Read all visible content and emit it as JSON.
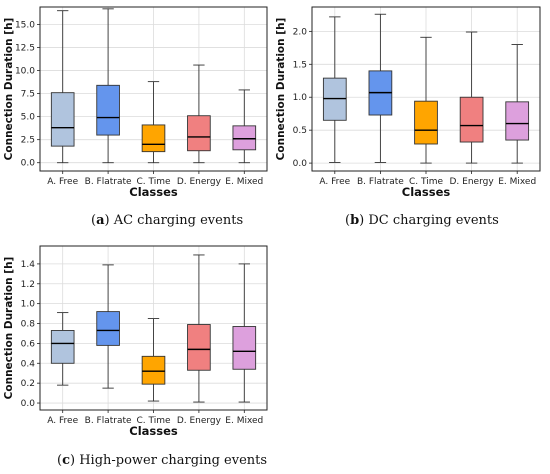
{
  "chart_data": [
    {
      "type": "box",
      "caption_letter": "a",
      "caption_text": "AC charging events",
      "xlabel": "Classes",
      "ylabel": "Connection Duration [h]",
      "ylim": [
        -0.9,
        16.9
      ],
      "yticks": [
        "0.0",
        "2.5",
        "5.0",
        "7.5",
        "10.0",
        "12.5",
        "15.0"
      ],
      "ytick_values": [
        0,
        2.5,
        5,
        7.5,
        10,
        12.5,
        15
      ],
      "grid": true,
      "categories": [
        "A. Free",
        "B. Flatrate",
        "C. Time",
        "D. Energy",
        "E. Mixed"
      ],
      "colors": [
        "#b0c4de",
        "#6495ed",
        "#ffa500",
        "#f08080",
        "#dda0dd"
      ],
      "boxes": [
        {
          "whisker_low": 0.0,
          "q1": 1.8,
          "median": 3.8,
          "q3": 7.6,
          "whisker_high": 16.5
        },
        {
          "whisker_low": 0.0,
          "q1": 3.0,
          "median": 4.9,
          "q3": 8.4,
          "whisker_high": 16.7
        },
        {
          "whisker_low": 0.0,
          "q1": 1.2,
          "median": 2.0,
          "q3": 4.1,
          "whisker_high": 8.8
        },
        {
          "whisker_low": 0.0,
          "q1": 1.3,
          "median": 2.8,
          "q3": 5.1,
          "whisker_high": 10.6
        },
        {
          "whisker_low": 0.0,
          "q1": 1.4,
          "median": 2.6,
          "q3": 4.0,
          "whisker_high": 7.9
        }
      ]
    },
    {
      "type": "box",
      "caption_letter": "b",
      "caption_text": "DC charging events",
      "xlabel": "Classes",
      "ylabel": "Connection Duration [h]",
      "ylim": [
        -0.12,
        2.37
      ],
      "yticks": [
        "0.0",
        "0.5",
        "1.0",
        "1.5",
        "2.0"
      ],
      "ytick_values": [
        0,
        0.5,
        1.0,
        1.5,
        2.0
      ],
      "grid": true,
      "categories": [
        "A. Free",
        "B. Flatrate",
        "C. Time",
        "D. Energy",
        "E. Mixed"
      ],
      "colors": [
        "#b0c4de",
        "#6495ed",
        "#ffa500",
        "#f08080",
        "#dda0dd"
      ],
      "boxes": [
        {
          "whisker_low": 0.01,
          "q1": 0.65,
          "median": 0.98,
          "q3": 1.29,
          "whisker_high": 2.22
        },
        {
          "whisker_low": 0.01,
          "q1": 0.73,
          "median": 1.07,
          "q3": 1.4,
          "whisker_high": 2.26
        },
        {
          "whisker_low": 0.0,
          "q1": 0.29,
          "median": 0.5,
          "q3": 0.94,
          "whisker_high": 1.91
        },
        {
          "whisker_low": 0.0,
          "q1": 0.32,
          "median": 0.57,
          "q3": 1.0,
          "whisker_high": 1.99
        },
        {
          "whisker_low": 0.0,
          "q1": 0.35,
          "median": 0.6,
          "q3": 0.93,
          "whisker_high": 1.8
        }
      ]
    },
    {
      "type": "box",
      "caption_letter": "c",
      "caption_text": "High-power charging events",
      "xlabel": "Classes",
      "ylabel": "Connection Duration [h]",
      "ylim": [
        -0.07,
        1.58
      ],
      "yticks": [
        "0.0",
        "0.2",
        "0.4",
        "0.6",
        "0.8",
        "1.0",
        "1.2",
        "1.4"
      ],
      "ytick_values": [
        0,
        0.2,
        0.4,
        0.6,
        0.8,
        1.0,
        1.2,
        1.4
      ],
      "grid": true,
      "categories": [
        "A. Free",
        "B. Flatrate",
        "C. Time",
        "D. Energy",
        "E. Mixed"
      ],
      "colors": [
        "#b0c4de",
        "#6495ed",
        "#ffa500",
        "#f08080",
        "#dda0dd"
      ],
      "boxes": [
        {
          "whisker_low": 0.18,
          "q1": 0.4,
          "median": 0.6,
          "q3": 0.73,
          "whisker_high": 0.91
        },
        {
          "whisker_low": 0.15,
          "q1": 0.58,
          "median": 0.73,
          "q3": 0.92,
          "whisker_high": 1.39
        },
        {
          "whisker_low": 0.02,
          "q1": 0.19,
          "median": 0.32,
          "q3": 0.47,
          "whisker_high": 0.85
        },
        {
          "whisker_low": 0.01,
          "q1": 0.33,
          "median": 0.54,
          "q3": 0.79,
          "whisker_high": 1.49
        },
        {
          "whisker_low": 0.01,
          "q1": 0.34,
          "median": 0.52,
          "q3": 0.77,
          "whisker_high": 1.4
        }
      ]
    }
  ]
}
